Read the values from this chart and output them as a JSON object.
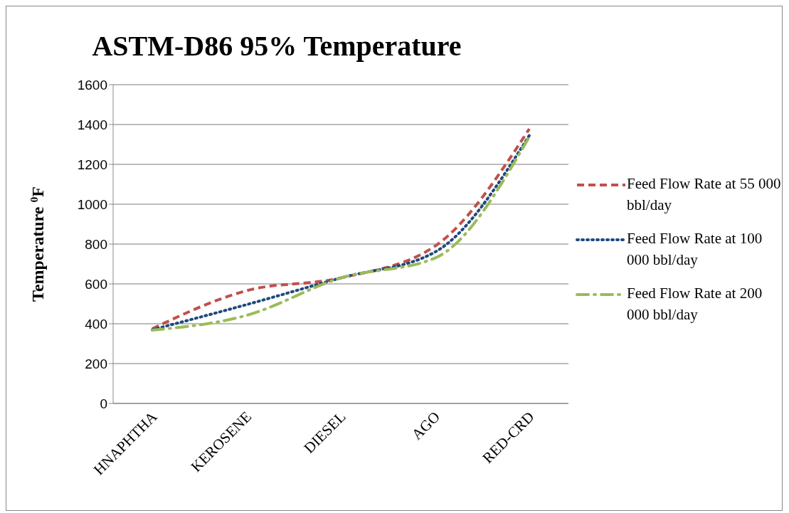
{
  "chart_data": {
    "type": "line",
    "title": "ASTM-D86 95% Temperature",
    "ylabel": "Temperature $^{0}$F",
    "categories": [
      "HNAPHTHA",
      "KEROSENE",
      "DIESEL",
      "AGO",
      "RED-CRD"
    ],
    "series": [
      {
        "name": "Feed Flow Rate at 55 000 bbl/day",
        "color": "#c0504d",
        "line_style": "dashed",
        "values": [
          375,
          566,
          630,
          790,
          1378
        ]
      },
      {
        "name": "Feed Flow Rate at 100 000 bbl/day",
        "color": "#1f497d",
        "line_style": "dotted",
        "values": [
          370,
          496,
          630,
          760,
          1345
        ]
      },
      {
        "name": "Feed Flow Rate at 200 000 bbl/day",
        "color": "#9bbb59",
        "line_style": "dashdot",
        "values": [
          368,
          442,
          630,
          730,
          1338
        ]
      }
    ],
    "ylim": [
      0,
      1600
    ],
    "yticks": [
      0,
      200,
      400,
      600,
      800,
      1000,
      1200,
      1400,
      1600
    ],
    "grid": "y",
    "legend": "right",
    "marker": "none"
  }
}
